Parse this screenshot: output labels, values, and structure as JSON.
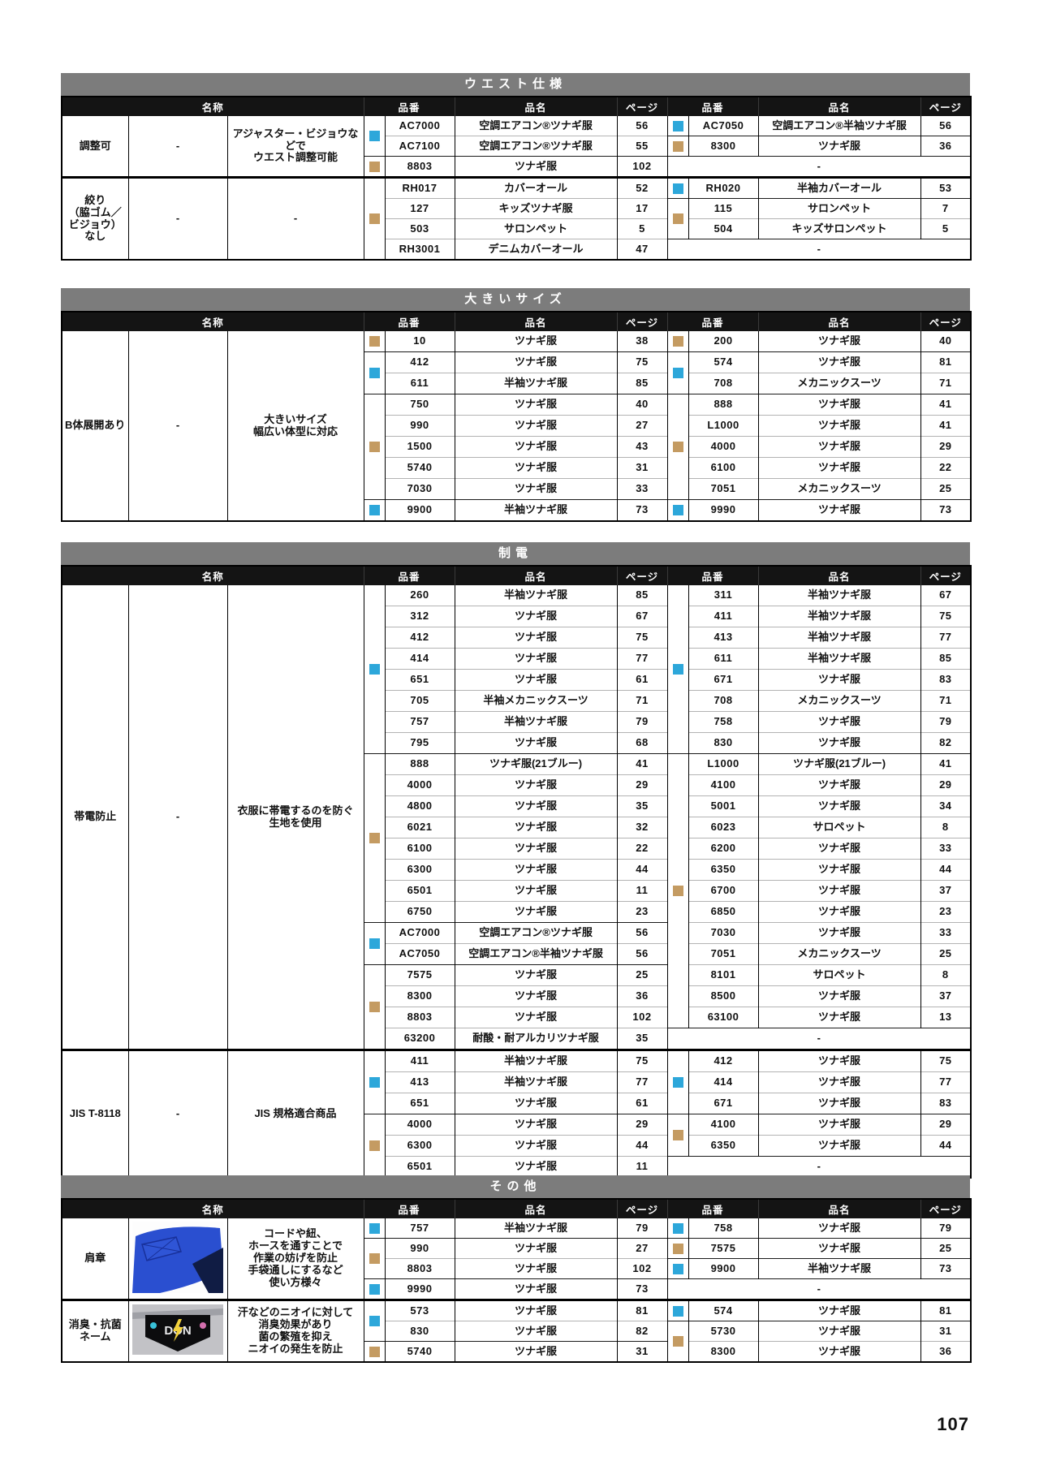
{
  "page_number": "107",
  "colors": {
    "blue": "#2da7da",
    "tan": "#c49b62",
    "section_bar": "#7c7c7c",
    "header_bar": "#141414"
  },
  "headers": {
    "name": "名称",
    "code": "品番",
    "item": "品名",
    "page": "ページ"
  },
  "sections": [
    {
      "title": "ウエスト仕様",
      "groups": [
        {
          "name": "調整可",
          "middle": "-",
          "desc": "アジャスター・ビジョウなどで\nウエスト調整可能",
          "left": {
            "marks": [
              [
                "blue",
                2
              ],
              [
                "tan",
                1
              ]
            ],
            "rows": [
              [
                "AC7000",
                "空調エアコン®ツナギ服",
                "56"
              ],
              [
                "AC7100",
                "空調エアコン®ツナギ服",
                "55"
              ],
              [
                "8803",
                "ツナギ服",
                "102"
              ]
            ]
          },
          "right": {
            "marks": [
              [
                "blue",
                1
              ],
              [
                "tan",
                1
              ]
            ],
            "rows": [
              [
                "AC7050",
                "空調エアコン®半袖ツナギ服",
                "56"
              ],
              [
                "8300",
                "ツナギ服",
                "36"
              ],
              "-"
            ]
          }
        },
        {
          "name": "絞り\n（脇ゴム／\nビジョウ）\nなし",
          "middle": "-",
          "desc": "-",
          "left": {
            "marks": [
              [
                "tan",
                4
              ]
            ],
            "rows": [
              [
                "RH017",
                "カバーオール",
                "52"
              ],
              [
                "127",
                "キッズツナギ服",
                "17"
              ],
              [
                "503",
                "サロンペット",
                "5"
              ],
              [
                "RH3001",
                "デニムカバーオール",
                "47"
              ]
            ]
          },
          "right": {
            "marks": [
              [
                "blue",
                1
              ],
              [
                "tan",
                2
              ]
            ],
            "rows": [
              [
                "RH020",
                "半袖カバーオール",
                "53"
              ],
              [
                "115",
                "サロンペット",
                "7"
              ],
              [
                "504",
                "キッズサロンペット",
                "5"
              ],
              "-"
            ]
          }
        }
      ]
    },
    {
      "title": "大きいサイズ",
      "groups": [
        {
          "name": "B体展開あり",
          "middle": "-",
          "desc": "大きいサイズ\n幅広い体型に対応",
          "left": {
            "marks": [
              [
                "tan",
                1
              ],
              [
                "blue",
                2
              ],
              [
                "tan",
                5
              ],
              [
                "blue",
                1
              ]
            ],
            "rows": [
              [
                "10",
                "ツナギ服",
                "38"
              ],
              [
                "412",
                "ツナギ服",
                "75"
              ],
              [
                "611",
                "半袖ツナギ服",
                "85"
              ],
              [
                "750",
                "ツナギ服",
                "40"
              ],
              [
                "990",
                "ツナギ服",
                "27"
              ],
              [
                "1500",
                "ツナギ服",
                "43"
              ],
              [
                "5740",
                "ツナギ服",
                "31"
              ],
              [
                "7030",
                "ツナギ服",
                "33"
              ],
              [
                "9900",
                "半袖ツナギ服",
                "73"
              ]
            ]
          },
          "right": {
            "marks": [
              [
                "tan",
                1
              ],
              [
                "blue",
                2
              ],
              [
                "tan",
                5
              ],
              [
                "blue",
                1
              ]
            ],
            "rows": [
              [
                "200",
                "ツナギ服",
                "40"
              ],
              [
                "574",
                "ツナギ服",
                "81"
              ],
              [
                "708",
                "メカニックスーツ",
                "71"
              ],
              [
                "888",
                "ツナギ服",
                "41"
              ],
              [
                "L1000",
                "ツナギ服",
                "41"
              ],
              [
                "4000",
                "ツナギ服",
                "29"
              ],
              [
                "6100",
                "ツナギ服",
                "22"
              ],
              [
                "7051",
                "メカニックスーツ",
                "25"
              ],
              [
                "9990",
                "ツナギ服",
                "73"
              ]
            ]
          }
        }
      ]
    },
    {
      "title": "制電",
      "groups": [
        {
          "name": "帯電防止",
          "middle": "-",
          "desc": "衣服に帯電するのを防ぐ\n生地を使用",
          "left": {
            "marks": [
              [
                "blue",
                8
              ],
              [
                "tan",
                8
              ],
              [
                "blue",
                2
              ],
              [
                "tan",
                4
              ]
            ],
            "rows": [
              [
                "260",
                "半袖ツナギ服",
                "85"
              ],
              [
                "312",
                "ツナギ服",
                "67"
              ],
              [
                "412",
                "ツナギ服",
                "75"
              ],
              [
                "414",
                "ツナギ服",
                "77"
              ],
              [
                "651",
                "ツナギ服",
                "61"
              ],
              [
                "705",
                "半袖メカニックスーツ",
                "71"
              ],
              [
                "757",
                "半袖ツナギ服",
                "79"
              ],
              [
                "795",
                "ツナギ服",
                "68"
              ],
              [
                "888",
                "ツナギ服(21ブルー)",
                "41"
              ],
              [
                "4000",
                "ツナギ服",
                "29"
              ],
              [
                "4800",
                "ツナギ服",
                "35"
              ],
              [
                "6021",
                "ツナギ服",
                "32"
              ],
              [
                "6100",
                "ツナギ服",
                "22"
              ],
              [
                "6300",
                "ツナギ服",
                "44"
              ],
              [
                "6501",
                "ツナギ服",
                "11"
              ],
              [
                "6750",
                "ツナギ服",
                "23"
              ],
              [
                "AC7000",
                "空調エアコン®ツナギ服",
                "56"
              ],
              [
                "AC7050",
                "空調エアコン®半袖ツナギ服",
                "56"
              ],
              [
                "7575",
                "ツナギ服",
                "25"
              ],
              [
                "8300",
                "ツナギ服",
                "36"
              ],
              [
                "8803",
                "ツナギ服",
                "102"
              ],
              [
                "63200",
                "耐酸・耐アルカリツナギ服",
                "35"
              ]
            ]
          },
          "right": {
            "marks": [
              [
                "blue",
                8
              ],
              [
                "tan",
                13
              ]
            ],
            "rows": [
              [
                "311",
                "半袖ツナギ服",
                "67"
              ],
              [
                "411",
                "半袖ツナギ服",
                "75"
              ],
              [
                "413",
                "半袖ツナギ服",
                "77"
              ],
              [
                "611",
                "半袖ツナギ服",
                "85"
              ],
              [
                "671",
                "ツナギ服",
                "83"
              ],
              [
                "708",
                "メカニックスーツ",
                "71"
              ],
              [
                "758",
                "ツナギ服",
                "79"
              ],
              [
                "830",
                "ツナギ服",
                "82"
              ],
              [
                "L1000",
                "ツナギ服(21ブルー)",
                "41"
              ],
              [
                "4100",
                "ツナギ服",
                "29"
              ],
              [
                "5001",
                "ツナギ服",
                "34"
              ],
              [
                "6023",
                "サロペット",
                "8"
              ],
              [
                "6200",
                "ツナギ服",
                "33"
              ],
              [
                "6350",
                "ツナギ服",
                "44"
              ],
              [
                "6700",
                "ツナギ服",
                "37"
              ],
              [
                "6850",
                "ツナギ服",
                "23"
              ],
              [
                "7030",
                "ツナギ服",
                "33"
              ],
              [
                "7051",
                "メカニックスーツ",
                "25"
              ],
              [
                "8101",
                "サロペット",
                "8"
              ],
              [
                "8500",
                "ツナギ服",
                "37"
              ],
              [
                "63100",
                "ツナギ服",
                "13"
              ],
              "-"
            ]
          }
        },
        {
          "name": "JIS T-8118",
          "middle": "-",
          "desc": "JIS 規格適合商品",
          "left": {
            "marks": [
              [
                "blue",
                3
              ],
              [
                "tan",
                3
              ]
            ],
            "rows": [
              [
                "411",
                "半袖ツナギ服",
                "75"
              ],
              [
                "413",
                "半袖ツナギ服",
                "77"
              ],
              [
                "651",
                "ツナギ服",
                "61"
              ],
              [
                "4000",
                "ツナギ服",
                "29"
              ],
              [
                "6300",
                "ツナギ服",
                "44"
              ],
              [
                "6501",
                "ツナギ服",
                "11"
              ]
            ]
          },
          "right": {
            "marks": [
              [
                "blue",
                3
              ],
              [
                "tan",
                2
              ]
            ],
            "rows": [
              [
                "412",
                "ツナギ服",
                "75"
              ],
              [
                "414",
                "ツナギ服",
                "77"
              ],
              [
                "671",
                "ツナギ服",
                "83"
              ],
              [
                "4100",
                "ツナギ服",
                "29"
              ],
              [
                "6350",
                "ツナギ服",
                "44"
              ],
              "-"
            ]
          }
        }
      ]
    },
    {
      "title": "その他",
      "groups": [
        {
          "name": "肩章",
          "img": "epaulet",
          "logo": "",
          "desc": "コードや紐、\nホースを通すことで\n作業の妨げを防止\n手袋通しにするなど\n使い方様々",
          "left": {
            "marks": [
              [
                "blue",
                1
              ],
              [
                "tan",
                2
              ],
              [
                "blue",
                1
              ]
            ],
            "rows": [
              [
                "757",
                "半袖ツナギ服",
                "79"
              ],
              [
                "990",
                "ツナギ服",
                "27"
              ],
              [
                "8803",
                "ツナギ服",
                "102"
              ],
              [
                "9990",
                "ツナギ服",
                "73"
              ]
            ]
          },
          "right": {
            "marks": [
              [
                "blue",
                1
              ],
              [
                "tan",
                1
              ],
              [
                "blue",
                1
              ]
            ],
            "rows": [
              [
                "758",
                "ツナギ服",
                "79"
              ],
              [
                "7575",
                "ツナギ服",
                "25"
              ],
              [
                "9900",
                "半袖ツナギ服",
                "73"
              ],
              "-"
            ]
          }
        },
        {
          "name": "消臭・抗菌\nネーム",
          "img": "tag",
          "logo": "DON",
          "desc": "汗などのニオイに対して\n消臭効果があり\n菌の繁殖を抑え\nニオイの発生を防止",
          "left": {
            "marks": [
              [
                "blue",
                2
              ],
              [
                "tan",
                1
              ]
            ],
            "rows": [
              [
                "573",
                "ツナギ服",
                "81"
              ],
              [
                "830",
                "ツナギ服",
                "82"
              ],
              [
                "5740",
                "ツナギ服",
                "31"
              ]
            ]
          },
          "right": {
            "marks": [
              [
                "blue",
                1
              ],
              [
                "tan",
                2
              ]
            ],
            "rows": [
              [
                "574",
                "ツナギ服",
                "81"
              ],
              [
                "5730",
                "ツナギ服",
                "31"
              ],
              [
                "8300",
                "ツナギ服",
                "36"
              ]
            ]
          }
        }
      ]
    }
  ]
}
